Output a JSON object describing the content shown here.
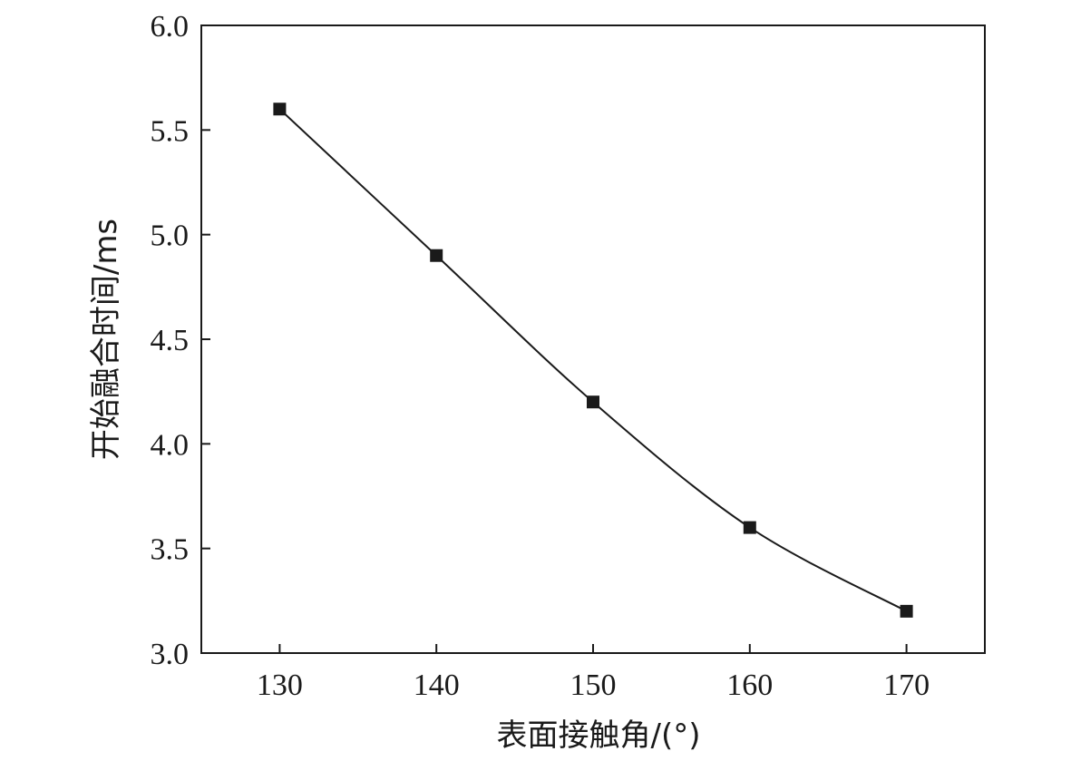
{
  "chart_data": {
    "type": "line",
    "title": "",
    "xlabel": "表面接触角/(°)",
    "ylabel": "开始融合时间/ms",
    "xlim": [
      125,
      175
    ],
    "ylim": [
      3.0,
      6.0
    ],
    "xticks": [
      "130",
      "140",
      "150",
      "160",
      "170"
    ],
    "yticks": [
      "3.0",
      "3.5",
      "4.0",
      "4.5",
      "5.0",
      "5.5",
      "6.0"
    ],
    "grid": false,
    "legend": "none",
    "series": [
      {
        "x": [
          130,
          140,
          150,
          160,
          170
        ],
        "y": [
          5.6,
          4.9,
          4.2,
          3.6,
          3.2
        ],
        "marker": "square",
        "color": "#1a1a1a"
      }
    ]
  }
}
